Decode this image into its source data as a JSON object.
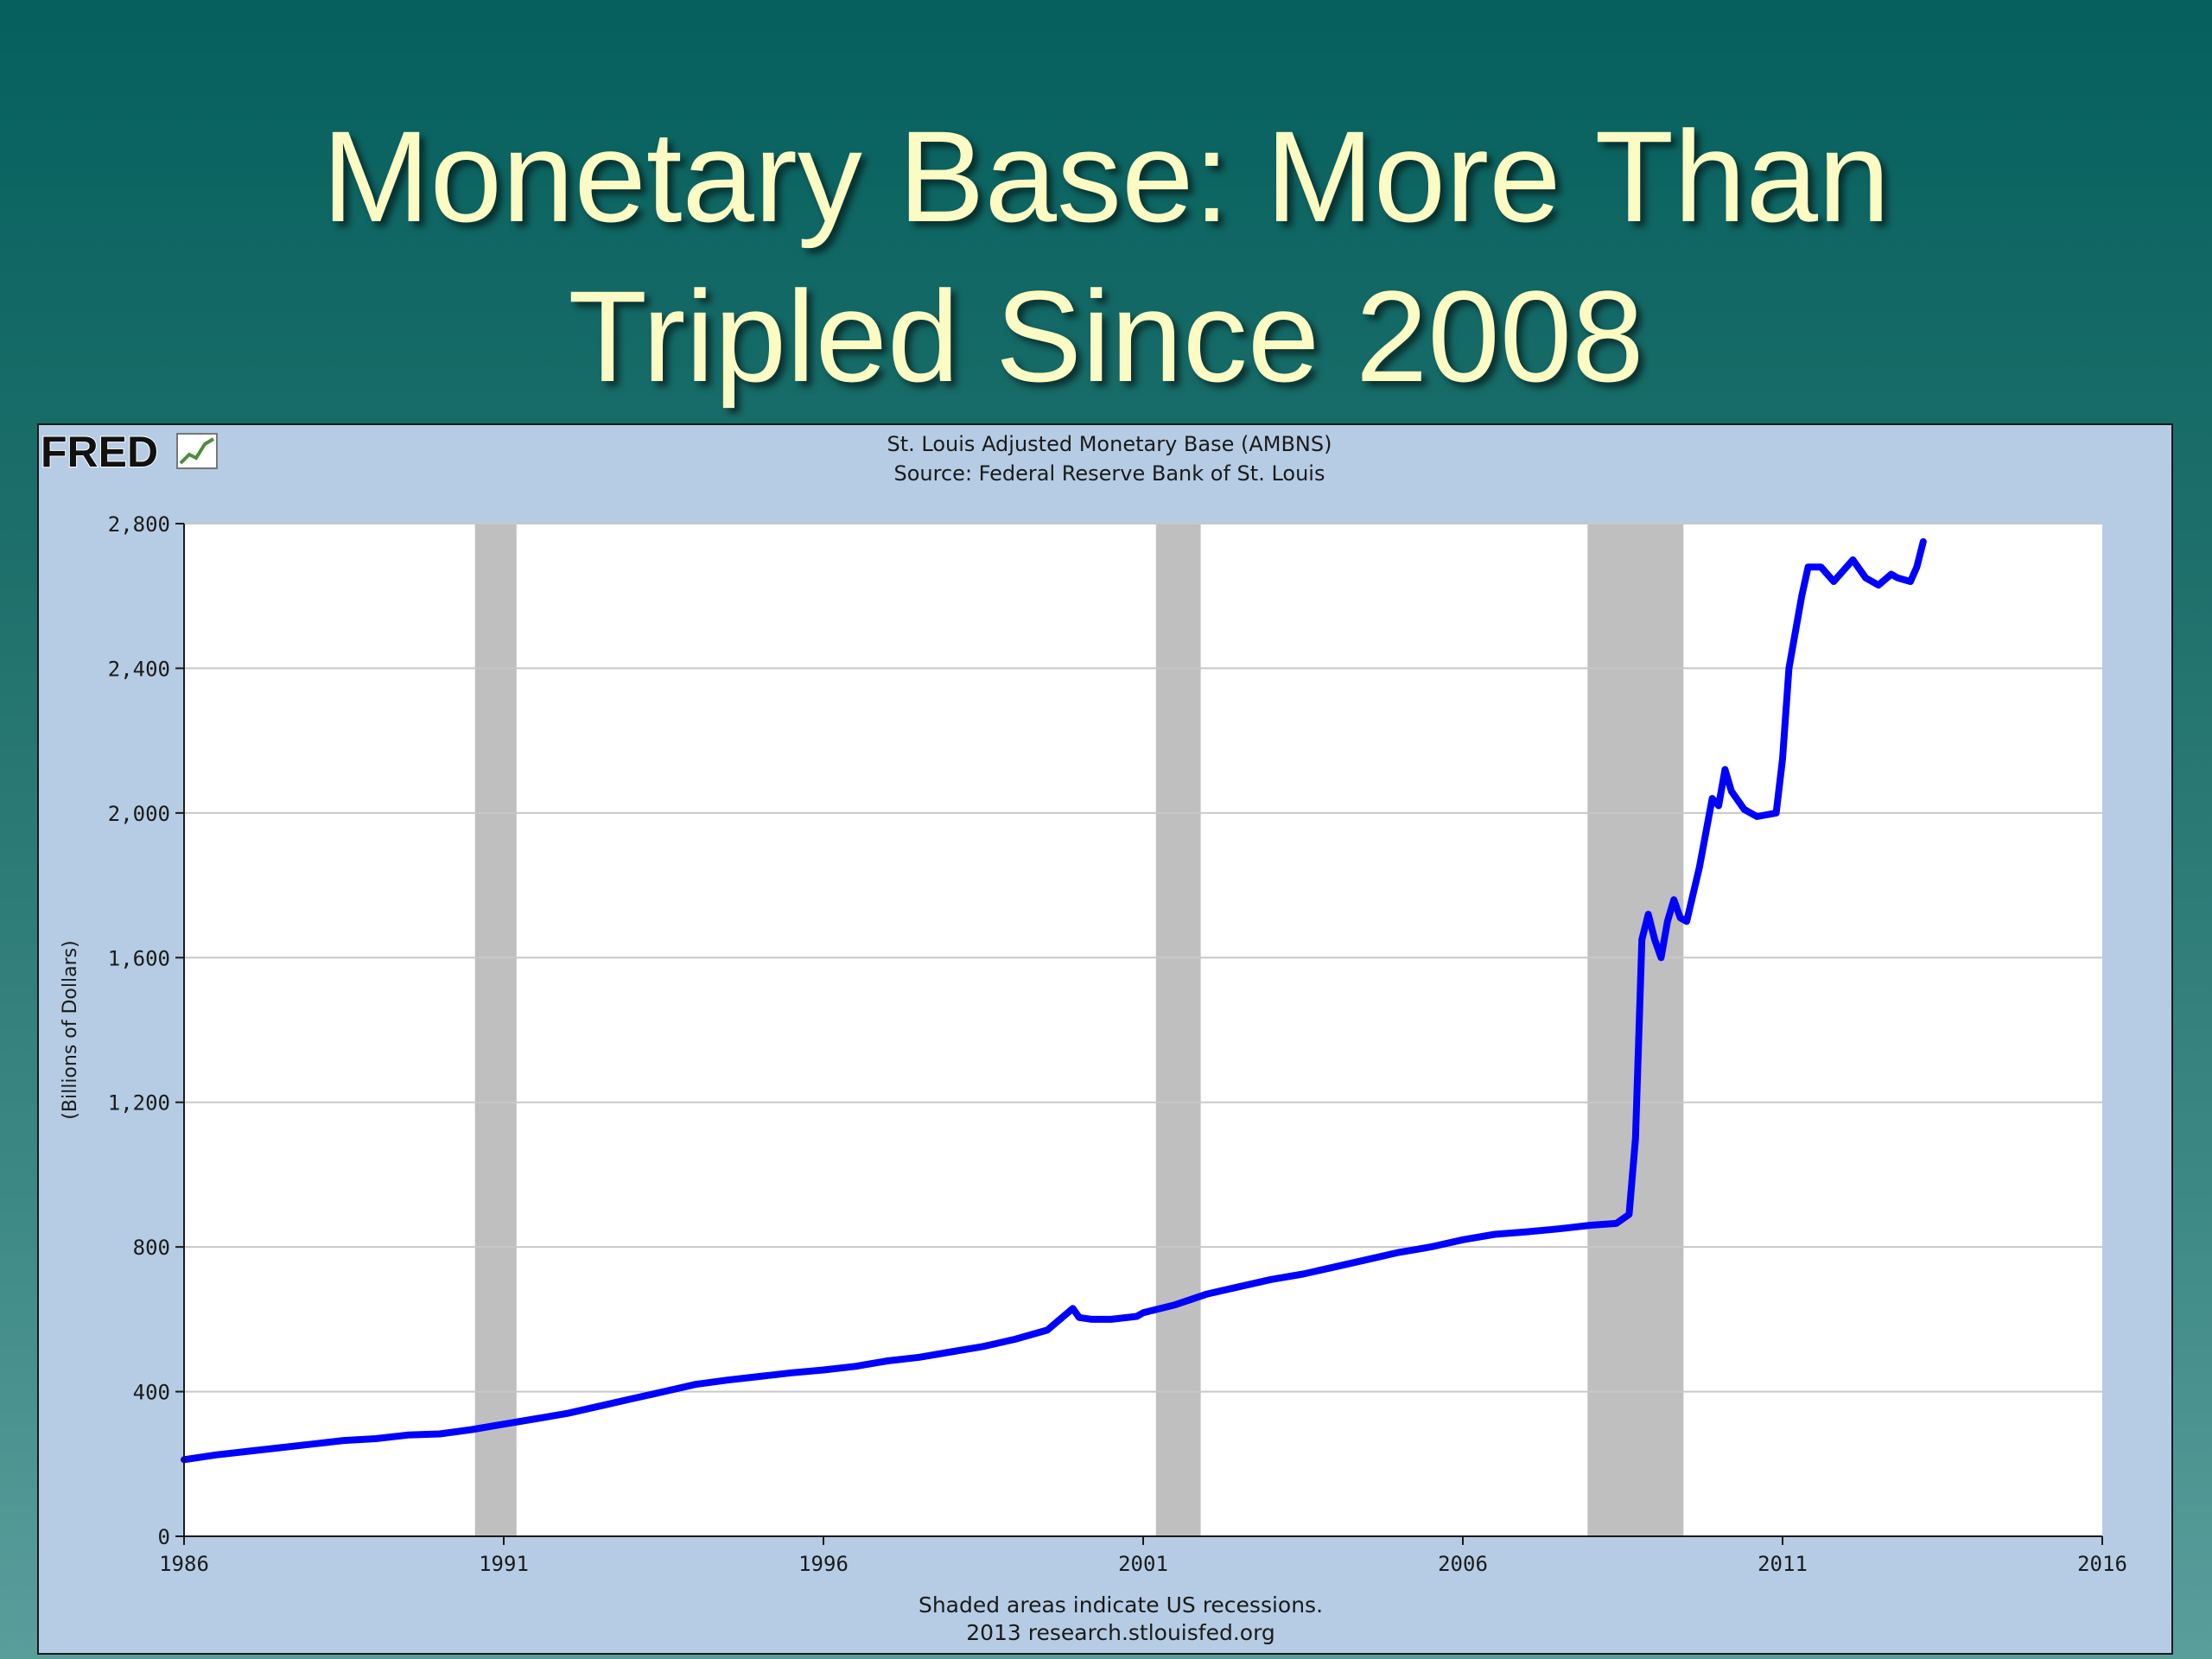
{
  "slide": {
    "title_line1": "Monetary Base: More Than",
    "title_line2": "Tripled Since 2008"
  },
  "colors": {
    "title": "#fbfbc3",
    "frame_bg": "#b5cce4",
    "plot_bg": "#ffffff",
    "series": "#0000ff",
    "recession": "#bfbfbf",
    "grid": "#c8c8c8"
  },
  "chart_data": {
    "type": "line",
    "title": "St. Louis Adjusted Monetary Base (AMBNS)",
    "subtitle": "Source: Federal Reserve Bank of St. Louis",
    "xlabel": "",
    "ylabel": "(Billions of Dollars)",
    "xlim": [
      1986,
      2016
    ],
    "ylim": [
      0,
      2800
    ],
    "x_ticks": [
      1986,
      1991,
      1996,
      2001,
      2006,
      2011,
      2016
    ],
    "x_tick_labels": [
      "1986",
      "1991",
      "1996",
      "2001",
      "2006",
      "2011",
      "2016"
    ],
    "y_ticks": [
      0,
      400,
      800,
      1200,
      1600,
      2000,
      2400,
      2800
    ],
    "y_tick_labels": [
      "0",
      "400",
      "800",
      "1,200",
      "1,600",
      "2,000",
      "2,400",
      "2,800"
    ],
    "grid": true,
    "recessions": [
      {
        "start": 1990.55,
        "end": 1991.2
      },
      {
        "start": 2001.2,
        "end": 2001.9
      },
      {
        "start": 2007.95,
        "end": 2009.45
      }
    ],
    "series": [
      {
        "name": "",
        "x": [
          1986.0,
          1986.5,
          1987.0,
          1987.5,
          1988.0,
          1988.5,
          1989.0,
          1989.5,
          1990.0,
          1990.5,
          1991.0,
          1991.5,
          1992.0,
          1992.5,
          1993.0,
          1993.5,
          1994.0,
          1994.5,
          1995.0,
          1995.5,
          1996.0,
          1996.5,
          1997.0,
          1997.5,
          1998.0,
          1998.5,
          1999.0,
          1999.5,
          1999.9,
          2000.0,
          2000.2,
          2000.5,
          2000.9,
          2001.0,
          2001.5,
          2002.0,
          2002.5,
          2003.0,
          2003.5,
          2004.0,
          2004.5,
          2005.0,
          2005.5,
          2006.0,
          2006.5,
          2007.0,
          2007.5,
          2008.0,
          2008.4,
          2008.6,
          2008.7,
          2008.8,
          2008.9,
          2009.0,
          2009.1,
          2009.2,
          2009.3,
          2009.4,
          2009.5,
          2009.7,
          2009.9,
          2010.0,
          2010.1,
          2010.2,
          2010.4,
          2010.6,
          2010.9,
          2011.0,
          2011.1,
          2011.3,
          2011.4,
          2011.6,
          2011.8,
          2011.9,
          2012.1,
          2012.3,
          2012.5,
          2012.7,
          2012.8,
          2013.0,
          2013.1,
          2013.2
        ],
        "values": [
          212,
          225,
          235,
          245,
          255,
          265,
          270,
          280,
          283,
          295,
          310,
          325,
          340,
          360,
          380,
          400,
          420,
          432,
          442,
          452,
          460,
          470,
          485,
          495,
          510,
          525,
          545,
          570,
          630,
          605,
          600,
          600,
          608,
          618,
          640,
          670,
          690,
          710,
          725,
          745,
          765,
          785,
          800,
          820,
          835,
          842,
          850,
          860,
          865,
          890,
          1100,
          1650,
          1720,
          1650,
          1600,
          1700,
          1760,
          1710,
          1700,
          1850,
          2040,
          2020,
          2120,
          2060,
          2010,
          1990,
          2000,
          2150,
          2400,
          2600,
          2680,
          2680,
          2640,
          2660,
          2700,
          2650,
          2630,
          2660,
          2650,
          2640,
          2680,
          2750
        ]
      }
    ],
    "footnote_line1": "Shaded areas indicate US recessions.",
    "footnote_line2": "2013 research.stlouisfed.org"
  },
  "logo": {
    "text": "FRED"
  }
}
